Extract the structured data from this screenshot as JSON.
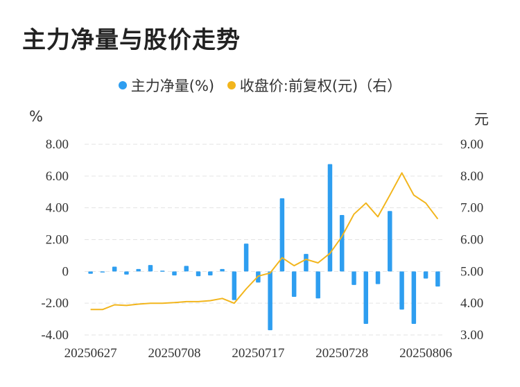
{
  "title": "主力净量与股价走势",
  "legend": {
    "net": "主力净量(%)",
    "price": "收盘价:前复权(元)（右）"
  },
  "left_unit": "%",
  "right_unit": "元",
  "colors": {
    "bar": "#2e9ef0",
    "line": "#f2b51c",
    "grid": "#e3e3e3"
  },
  "chart_data": {
    "type": "bar+line",
    "x_tick_labels": [
      "20250627",
      "20250708",
      "20250717",
      "20250728",
      "20250806"
    ],
    "left_axis": {
      "ticks": [
        "8.00",
        "6.00",
        "4.00",
        "2.00",
        "0",
        "-2.00",
        "-4.00"
      ],
      "ylim": [
        -4,
        8
      ]
    },
    "right_axis": {
      "ticks": [
        "9.00",
        "8.00",
        "7.00",
        "6.00",
        "5.00",
        "4.00",
        "3.00"
      ],
      "ylim": [
        3,
        9
      ]
    },
    "net_volume": [
      -0.15,
      -0.05,
      0.3,
      -0.2,
      0.15,
      0.4,
      0.05,
      -0.25,
      0.35,
      -0.3,
      -0.25,
      0.15,
      -1.8,
      1.75,
      -0.7,
      -3.7,
      4.6,
      -1.6,
      1.1,
      -1.7,
      6.75,
      3.55,
      -0.85,
      -3.3,
      -0.8,
      3.8,
      -2.4,
      -3.3,
      -0.45,
      -0.95
    ],
    "close_price": [
      3.8,
      3.8,
      3.95,
      3.93,
      3.97,
      4.0,
      4.0,
      4.02,
      4.05,
      4.05,
      4.08,
      4.15,
      4.0,
      4.45,
      4.85,
      4.95,
      5.43,
      5.18,
      5.38,
      5.27,
      5.57,
      6.1,
      6.8,
      7.15,
      6.72,
      7.4,
      8.1,
      7.4,
      7.15,
      6.65
    ]
  }
}
